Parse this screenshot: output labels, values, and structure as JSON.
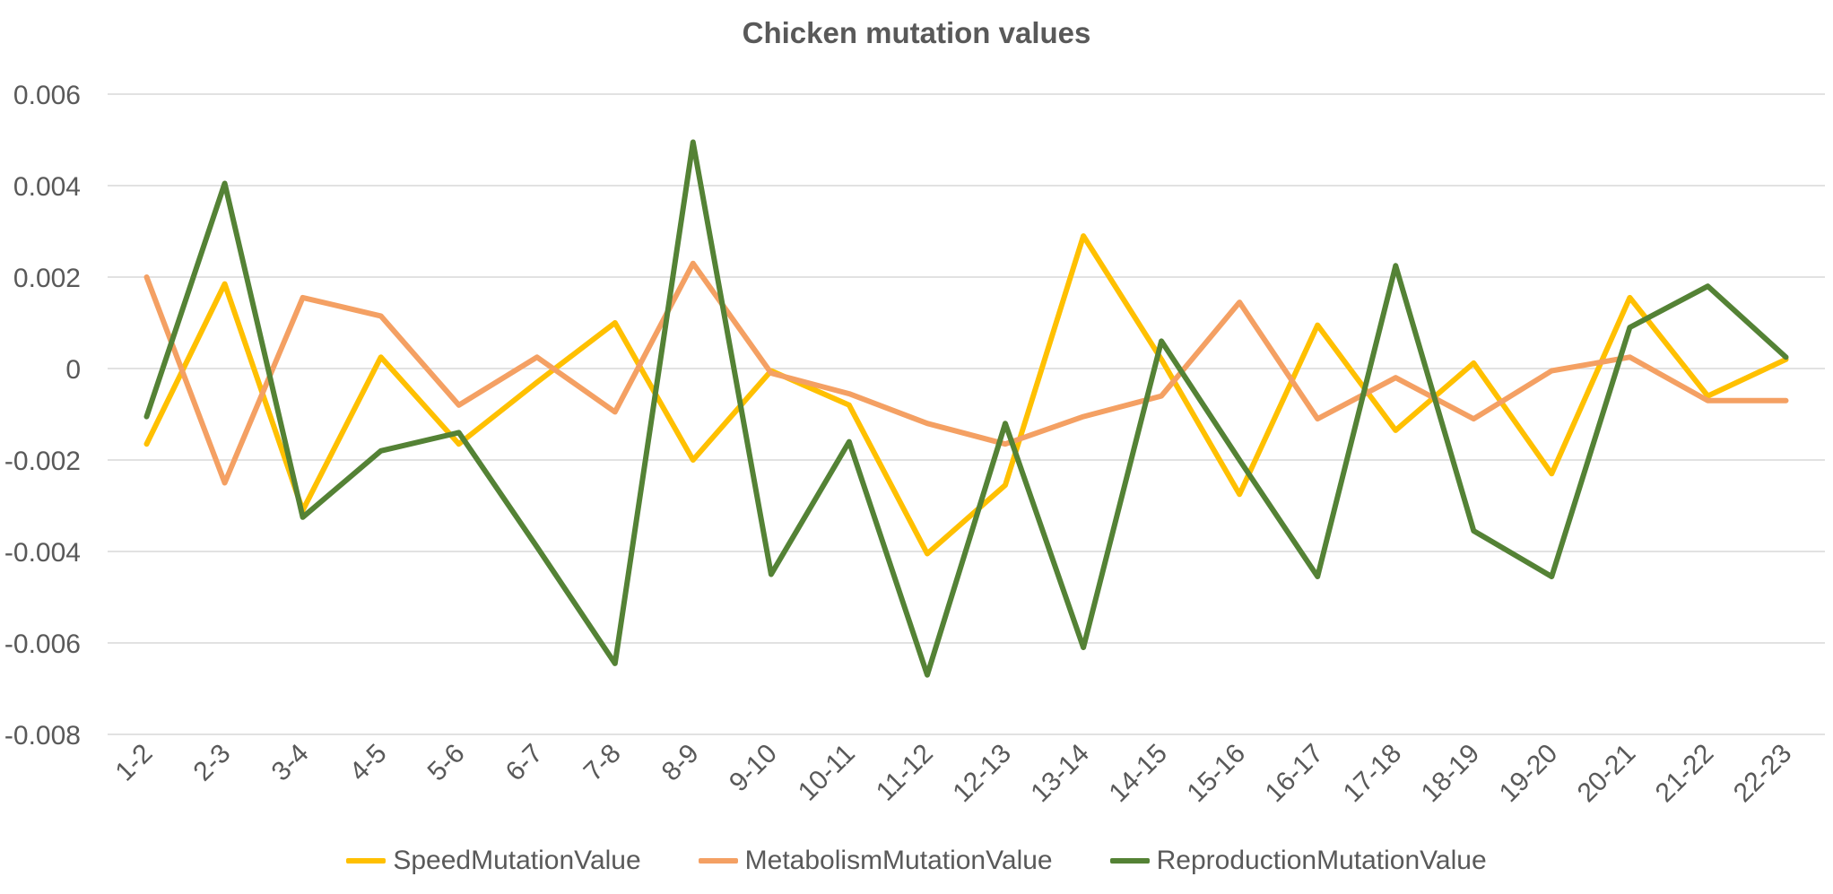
{
  "chart_data": {
    "type": "line",
    "title": "Chicken mutation values",
    "xlabel": "",
    "ylabel": "",
    "categories": [
      "1-2",
      "2-3",
      "3-4",
      "4-5",
      "5-6",
      "6-7",
      "7-8",
      "8-9",
      "9-10",
      "10-11",
      "11-12",
      "12-13",
      "13-14",
      "14-15",
      "15-16",
      "16-17",
      "17-18",
      "18-19",
      "19-20",
      "20-21",
      "21-22",
      "22-23"
    ],
    "ylim": [
      -0.008,
      0.006
    ],
    "yticks": [
      0.006,
      0.004,
      0.002,
      0,
      -0.002,
      -0.004,
      -0.006,
      -0.008
    ],
    "ytick_labels": [
      "0.006",
      "0.004",
      "0.002",
      "0",
      "-0.002",
      "-0.004",
      "-0.006",
      "-0.008"
    ],
    "grid": "horizontal",
    "legend_position": "bottom",
    "series": [
      {
        "name": "SpeedMutationValue",
        "color": "#FFC000",
        "values": [
          -0.00165,
          0.00185,
          -0.0031,
          0.00025,
          -0.00165,
          -0.0003,
          0.001,
          -0.002,
          -5e-05,
          -0.0008,
          -0.00405,
          -0.00255,
          0.0029,
          0.0002,
          -0.00275,
          0.00095,
          -0.00135,
          0.00012,
          -0.0023,
          0.00155,
          -0.0006,
          0.0002
        ]
      },
      {
        "name": "MetabolismMutationValue",
        "color": "#F4A063",
        "values": [
          0.002,
          -0.0025,
          0.00155,
          0.00115,
          -0.0008,
          0.00025,
          -0.00095,
          0.0023,
          -0.0001,
          -0.00055,
          -0.0012,
          -0.00165,
          -0.00105,
          -0.0006,
          0.00145,
          -0.0011,
          -0.0002,
          -0.0011,
          -5e-05,
          0.00025,
          -0.0007,
          -0.0007
        ]
      },
      {
        "name": "ReproductionMutationValue",
        "color": "#548235",
        "values": [
          -0.00105,
          0.00405,
          -0.00325,
          -0.0018,
          -0.0014,
          -0.0039,
          -0.00645,
          0.00495,
          -0.0045,
          -0.0016,
          -0.0067,
          -0.0012,
          -0.0061,
          0.0006,
          -0.002,
          -0.00455,
          0.00225,
          -0.00355,
          -0.00455,
          0.0009,
          0.0018,
          0.00025
        ]
      }
    ]
  }
}
